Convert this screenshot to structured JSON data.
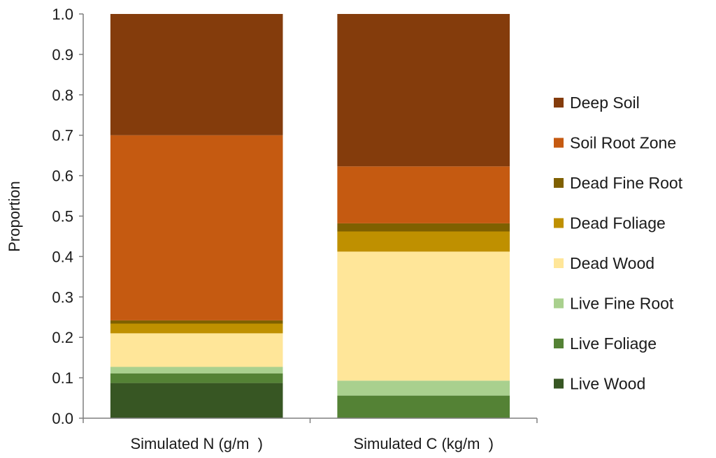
{
  "chart_data": {
    "type": "bar",
    "stacked": true,
    "ylabel": "Proportion",
    "ylim": [
      0,
      1
    ],
    "yticks": [
      "0.0",
      "0.1",
      "0.2",
      "0.3",
      "0.4",
      "0.5",
      "0.6",
      "0.7",
      "0.8",
      "0.9",
      "1.0"
    ],
    "categories": [
      "Simulated N (g/m  )",
      "Simulated C (kg/m  )"
    ],
    "legend_position": "right",
    "grid": false,
    "series": [
      {
        "name": "Live Wood",
        "color": "#375623",
        "values": [
          0.087,
          0.0
        ]
      },
      {
        "name": "Live Foliage",
        "color": "#548235",
        "values": [
          0.024,
          0.056
        ]
      },
      {
        "name": "Live Fine Root",
        "color": "#a9d08e",
        "values": [
          0.016,
          0.037
        ]
      },
      {
        "name": "Dead Wood",
        "color": "#ffe699",
        "values": [
          0.083,
          0.319
        ]
      },
      {
        "name": "Dead Foliage",
        "color": "#bf9000",
        "values": [
          0.024,
          0.05
        ]
      },
      {
        "name": "Dead Fine Root",
        "color": "#7f6000",
        "values": [
          0.008,
          0.02
        ]
      },
      {
        "name": "Soil Root Zone",
        "color": "#c55a11",
        "values": [
          0.458,
          0.141
        ]
      },
      {
        "name": "Deep Soil",
        "color": "#843c0c",
        "values": [
          0.3,
          0.377
        ]
      }
    ]
  }
}
